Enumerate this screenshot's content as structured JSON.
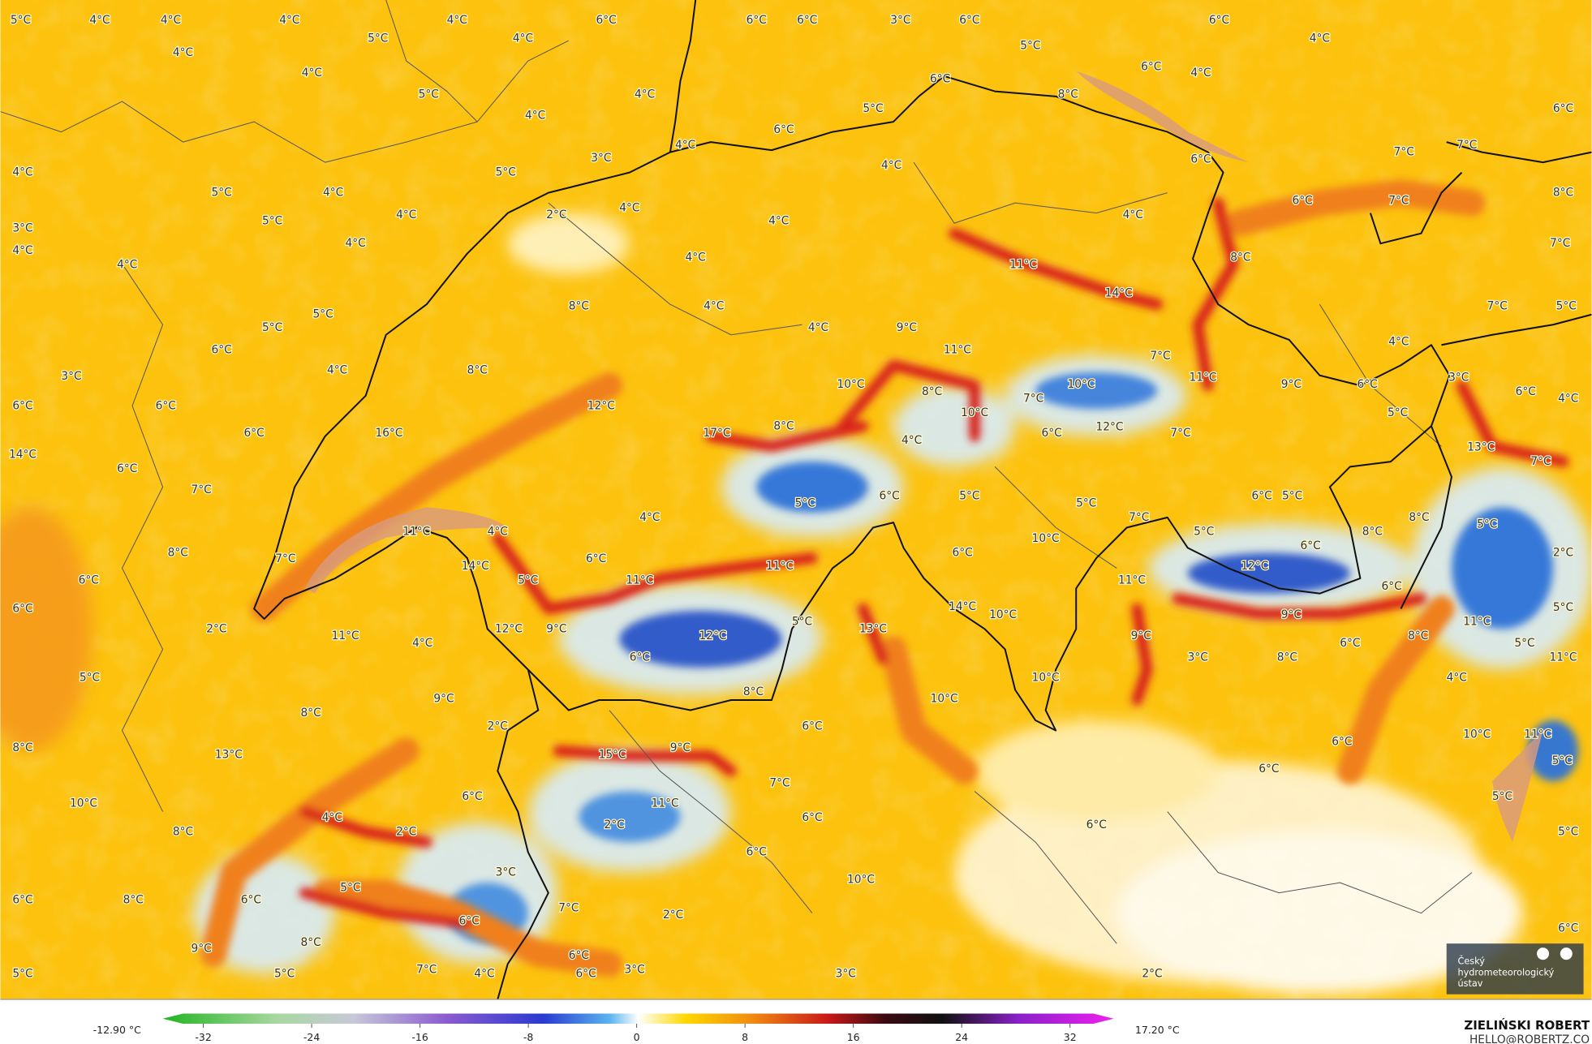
{
  "map": {
    "labels": [
      "5°C",
      "4°C",
      "4°C",
      "4°C",
      "4°C",
      "6°C",
      "6°C",
      "6°C",
      "3°C",
      "6°C",
      "6°C",
      "4°C",
      "5°C",
      "4°C",
      "5°C",
      "4°C",
      "6°C",
      "4°C",
      "6°C",
      "8°C",
      "4°C",
      "5°C",
      "4°C",
      "5°C",
      "6°C",
      "4°C",
      "6°C",
      "4°C",
      "3°C",
      "6°C",
      "7°C",
      "7°C",
      "4°C",
      "5°C",
      "4°C",
      "7°C",
      "8°C",
      "5°C",
      "4°C",
      "6°C",
      "2°C",
      "4°C",
      "4°C",
      "3°C",
      "5°C",
      "4°C",
      "4°C",
      "7°C",
      "4°C",
      "4°C",
      "4°C",
      "4°C",
      "8°C",
      "11°C",
      "14°C",
      "8°C",
      "4°C",
      "5°C",
      "7°C",
      "5°C",
      "5°C",
      "4°C",
      "9°C",
      "4°C",
      "6°C",
      "11°C",
      "7°C",
      "3°C",
      "4°C",
      "8°C",
      "10°C",
      "11°C",
      "9°C",
      "6°C",
      "3°C",
      "8°C",
      "10°C",
      "7°C",
      "6°C",
      "4°C",
      "6°C",
      "6°C",
      "12°C",
      "10°C",
      "5°C",
      "6°C",
      "16°C",
      "17°C",
      "8°C",
      "6°C",
      "12°C",
      "7°C",
      "4°C",
      "14°C",
      "13°C",
      "7°C",
      "6°C",
      "7°C",
      "5°C",
      "6°C",
      "5°C",
      "5°C",
      "6°C",
      "5°C",
      "4°C",
      "7°C",
      "8°C",
      "11°C",
      "4°C",
      "5°C",
      "8°C",
      "5°C",
      "8°C",
      "7°C",
      "6°C",
      "6°C",
      "10°C",
      "12°C",
      "6°C",
      "2°C",
      "14°C",
      "11°C",
      "11°C",
      "5°C",
      "11°C",
      "6°C",
      "6°C",
      "6°C",
      "14°C",
      "10°C",
      "9°C",
      "11°C",
      "5°C",
      "2°C",
      "12°C",
      "9°C",
      "5°C",
      "12°C",
      "13°C",
      "9°C",
      "8°C",
      "11°C",
      "4°C",
      "5°C",
      "6°C",
      "3°C",
      "8°C",
      "6°C",
      "5°C",
      "10°C",
      "4°C",
      "11°C",
      "9°C",
      "8°C",
      "10°C",
      "8°C",
      "2°C",
      "6°C",
      "10°C",
      "11°C",
      "6°C",
      "8°C",
      "13°C",
      "15°C",
      "9°C",
      "5°C",
      "6°C",
      "7°C",
      "5°C",
      "10°C",
      "6°C",
      "11°C",
      "4°C",
      "6°C",
      "2°C",
      "6°C",
      "8°C",
      "2°C",
      "5°C",
      "6°C",
      "3°C",
      "10°C",
      "5°C",
      "6°C",
      "8°C",
      "6°C",
      "7°C",
      "6°C",
      "2°C",
      "6°C",
      "8°C",
      "9°C",
      "6°C",
      "5°C",
      "5°C",
      "7°C",
      "4°C",
      "6°C",
      "3°C",
      "3°C",
      "2°C"
    ],
    "colorbar": {
      "min_label": "-12.90 °C",
      "max_label": "17.20 °C",
      "ticks": [
        -32,
        -24,
        -16,
        -8,
        0,
        8,
        16,
        24,
        32
      ]
    },
    "credit": {
      "name": "ZIELIŃSKI ROBERT",
      "contact": "HELLO@ROBERTZ.CO"
    },
    "logo": [
      "Český",
      "hydrometeorologický",
      "ústav"
    ]
  }
}
